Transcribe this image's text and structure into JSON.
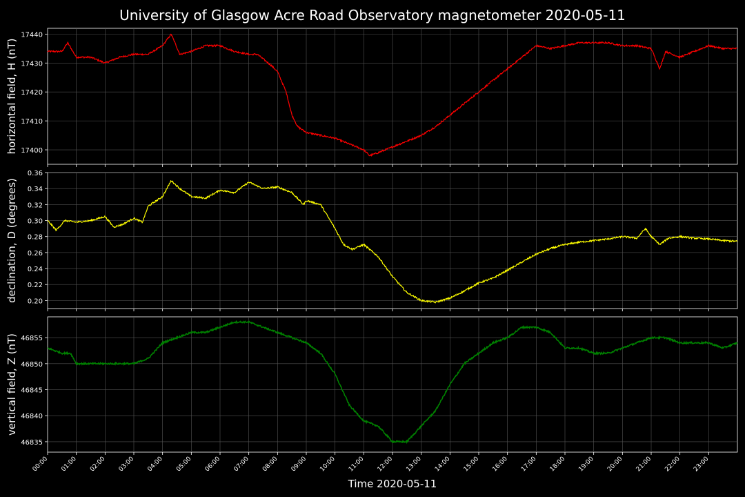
{
  "title": "University of Glasgow Acre Road Observatory magnetometer 2020-05-11",
  "colors": {
    "background": "#000000",
    "grid": "#555555",
    "axis": "#ffffff",
    "text": "#ffffff"
  },
  "chart_data": [
    {
      "type": "line",
      "ylabel": "horizontal field, H (nT)",
      "ylim": [
        17395,
        17442
      ],
      "yticks": [
        17400,
        17410,
        17420,
        17430,
        17440
      ],
      "grid": true,
      "series": [
        {
          "color": "#ff0000",
          "x": [
            0.0,
            0.5,
            0.7,
            1.0,
            1.5,
            2.0,
            2.5,
            3.0,
            3.5,
            4.0,
            4.3,
            4.6,
            5.0,
            5.5,
            6.0,
            6.5,
            7.0,
            7.3,
            7.8,
            8.0,
            8.3,
            8.5,
            8.7,
            9.0,
            9.5,
            10.0,
            10.5,
            11.0,
            11.2,
            11.5,
            12.0,
            12.5,
            13.0,
            13.5,
            14.0,
            14.5,
            15.0,
            15.5,
            16.0,
            16.5,
            17.0,
            17.5,
            18.0,
            18.5,
            19.0,
            19.5,
            20.0,
            20.5,
            21.0,
            21.3,
            21.5,
            22.0,
            22.5,
            23.0,
            23.5,
            24.0
          ],
          "y": [
            17434,
            17434,
            17437,
            17432,
            17432,
            17430,
            17432,
            17433,
            17433,
            17436,
            17440,
            17433,
            17434,
            17436,
            17436,
            17434,
            17433,
            17433,
            17429,
            17427,
            17420,
            17412,
            17408,
            17406,
            17405,
            17404,
            17402,
            17400,
            17398,
            17399,
            17401,
            17403,
            17405,
            17408,
            17412,
            17416,
            17420,
            17424,
            17428,
            17432,
            17436,
            17435,
            17436,
            17437,
            17437,
            17437,
            17436,
            17436,
            17435,
            17428,
            17434,
            17432,
            17434,
            17436,
            17435,
            17435
          ]
        }
      ]
    },
    {
      "type": "line",
      "ylabel": "declination, D (degrees)",
      "ylim": [
        0.19,
        0.36
      ],
      "yticks": [
        0.2,
        0.22,
        0.24,
        0.26,
        0.28,
        0.3,
        0.32,
        0.34,
        0.36
      ],
      "grid": true,
      "series": [
        {
          "color": "#ffff00",
          "x": [
            0.0,
            0.3,
            0.6,
            1.0,
            1.5,
            2.0,
            2.3,
            2.6,
            3.0,
            3.3,
            3.5,
            4.0,
            4.3,
            4.6,
            5.0,
            5.5,
            6.0,
            6.5,
            7.0,
            7.5,
            8.0,
            8.5,
            8.9,
            9.0,
            9.5,
            10.0,
            10.3,
            10.6,
            11.0,
            11.5,
            12.0,
            12.5,
            13.0,
            13.5,
            14.0,
            14.5,
            15.0,
            15.5,
            16.0,
            16.5,
            17.0,
            17.5,
            18.0,
            18.5,
            19.0,
            19.5,
            20.0,
            20.5,
            20.8,
            21.0,
            21.3,
            21.6,
            22.0,
            22.5,
            23.0,
            23.5,
            24.0
          ],
          "y": [
            0.3,
            0.288,
            0.3,
            0.298,
            0.3,
            0.305,
            0.292,
            0.295,
            0.303,
            0.298,
            0.318,
            0.33,
            0.35,
            0.34,
            0.33,
            0.328,
            0.338,
            0.335,
            0.348,
            0.34,
            0.342,
            0.335,
            0.32,
            0.325,
            0.32,
            0.29,
            0.27,
            0.264,
            0.27,
            0.255,
            0.23,
            0.21,
            0.2,
            0.198,
            0.203,
            0.212,
            0.222,
            0.228,
            0.238,
            0.248,
            0.258,
            0.265,
            0.27,
            0.273,
            0.275,
            0.277,
            0.28,
            0.278,
            0.29,
            0.28,
            0.27,
            0.278,
            0.28,
            0.278,
            0.277,
            0.275,
            0.274
          ]
        }
      ]
    },
    {
      "type": "line",
      "ylabel": "vertical field, Z (nT)",
      "ylim": [
        46833,
        46859
      ],
      "yticks": [
        46835,
        46840,
        46845,
        46850,
        46855
      ],
      "grid": true,
      "xlabel": "Time 2020-05-11",
      "xticks": [
        "00:00",
        "01:00",
        "02:00",
        "03:00",
        "04:00",
        "05:00",
        "06:00",
        "07:00",
        "08:00",
        "09:00",
        "10:00",
        "11:00",
        "12:00",
        "13:00",
        "14:00",
        "15:00",
        "16:00",
        "17:00",
        "18:00",
        "19:00",
        "20:00",
        "21:00",
        "22:00",
        "23:00"
      ],
      "series": [
        {
          "color": "#008000",
          "x": [
            0.0,
            0.5,
            0.8,
            1.0,
            1.5,
            2.0,
            2.5,
            3.0,
            3.5,
            4.0,
            4.5,
            5.0,
            5.5,
            6.0,
            6.5,
            7.0,
            7.5,
            8.0,
            8.5,
            9.0,
            9.5,
            10.0,
            10.5,
            11.0,
            11.5,
            12.0,
            12.5,
            13.0,
            13.5,
            14.0,
            14.5,
            15.0,
            15.5,
            16.0,
            16.5,
            17.0,
            17.5,
            18.0,
            18.5,
            19.0,
            19.5,
            20.0,
            20.5,
            21.0,
            21.5,
            22.0,
            22.5,
            23.0,
            23.5,
            24.0
          ],
          "y": [
            46853,
            46852,
            46852,
            46850,
            46850,
            46850,
            46850,
            46850,
            46851,
            46854,
            46855,
            46856,
            46856,
            46857,
            46858,
            46858,
            46857,
            46856,
            46855,
            46854,
            46852,
            46848,
            46842,
            46839,
            46838,
            46835,
            46835,
            46838,
            46841,
            46846,
            46850,
            46852,
            46854,
            46855,
            46857,
            46857,
            46856,
            46853,
            46853,
            46852,
            46852,
            46853,
            46854,
            46855,
            46855,
            46854,
            46854,
            46854,
            46853,
            46854
          ]
        }
      ]
    }
  ]
}
